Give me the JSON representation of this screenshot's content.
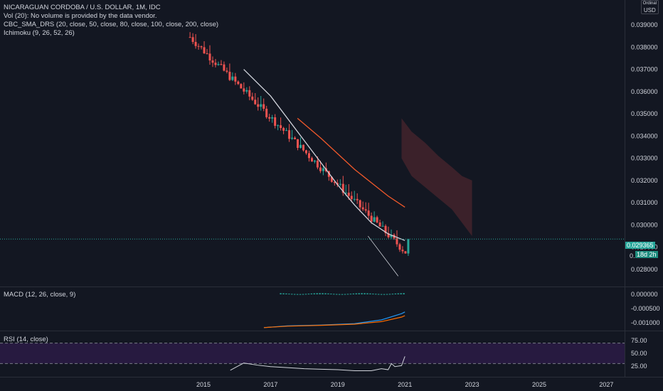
{
  "legend": {
    "symbol": "NICARAGUAN CORDOBA / U.S. DOLLAR, 1M, IDC",
    "volume": "Vol (20): No volume is provided by the data vendor.",
    "sma": "CBC_SMA_DRS (20, close, 50, close, 80, close, 100, close, 200, close)",
    "ichimoku": "Ichimoku (9, 26, 52, 26)"
  },
  "currency": {
    "top": "Ordinal",
    "bottom": "USD"
  },
  "last_price": {
    "value": "0.029365",
    "countdown": "18d 2h",
    "partial_label": "0."
  },
  "colors": {
    "background": "#131722",
    "up": "#26a69a",
    "down": "#ef5350",
    "sma_fast": "#d1d4dc",
    "sma_slow": "#f0592b",
    "cloud": "#5d2a31",
    "macd_line": "#2196f3",
    "signal_line": "#ff6d00",
    "rsi_band": "#2b1b45",
    "rsi_line": "#d1d4dc"
  },
  "panes": {
    "macd_label": "MACD (12, 26, close, 9)",
    "rsi_label": "RSI (14, close)"
  },
  "chart_data": [
    {
      "type": "candlestick",
      "title": "NICARAGUAN CORDOBA / U.S. DOLLAR, 1M, IDC",
      "x_ticks": [
        "2015",
        "2017",
        "2019",
        "2021",
        "2023",
        "2025",
        "2027"
      ],
      "y_ticks": [
        "0.039000",
        "0.038000",
        "0.037000",
        "0.036000",
        "0.035000",
        "0.034000",
        "0.033000",
        "0.032000",
        "0.031000",
        "0.030000",
        "0.029000",
        "0.028000"
      ],
      "ylim": [
        0.0274,
        0.0402
      ],
      "xlim": [
        2013.0,
        2027.4
      ],
      "candles": {
        "start_year": 2014.6,
        "end_year": 2021.1,
        "start_price": 0.03845,
        "end_price": 0.02865,
        "count": 78
      },
      "series": [
        {
          "name": "SMA fast",
          "x": [
            2016.2,
            2017.0,
            2018.0,
            2019.0,
            2019.5,
            2020.0,
            2020.5,
            2021.0
          ],
          "y": [
            0.037,
            0.0358,
            0.0338,
            0.0318,
            0.0309,
            0.0301,
            0.0296,
            0.0293
          ]
        },
        {
          "name": "SMA slow",
          "x": [
            2017.8,
            2018.5,
            2019.0,
            2019.5,
            2020.0,
            2020.5,
            2021.0
          ],
          "y": [
            0.0348,
            0.0339,
            0.0332,
            0.0325,
            0.0319,
            0.0313,
            0.0308
          ]
        },
        {
          "name": "trend",
          "x": [
            2019.9,
            2020.8
          ],
          "y": [
            0.0295,
            0.0277
          ]
        }
      ],
      "cloud": {
        "x": [
          2020.9,
          2021.2,
          2021.6,
          2022.0,
          2022.4,
          2022.7,
          2023.0
        ],
        "upper": [
          0.0348,
          0.0342,
          0.0337,
          0.0331,
          0.0326,
          0.0322,
          0.032
        ],
        "lower": [
          0.033,
          0.0322,
          0.0317,
          0.0312,
          0.0307,
          0.0301,
          0.0295
        ]
      },
      "price_line": 0.029365
    },
    {
      "type": "line",
      "title": "MACD (12, 26, close, 9)",
      "y_ticks": [
        "0.000000",
        "-0.000500",
        "-0.001000"
      ],
      "ylim": [
        -0.00125,
        0.00025
      ],
      "series": [
        {
          "name": "MACD",
          "x": [
            2016.8,
            2017.5,
            2018.5,
            2019.5,
            2020.3,
            2020.9,
            2021.0
          ],
          "y": [
            -0.00117,
            -0.00111,
            -0.00108,
            -0.00103,
            -0.0009,
            -0.00068,
            -0.00062
          ]
        },
        {
          "name": "Signal",
          "x": [
            2016.8,
            2017.5,
            2018.5,
            2019.5,
            2020.3,
            2020.9,
            2021.0
          ],
          "y": [
            -0.00117,
            -0.00112,
            -0.00109,
            -0.00105,
            -0.00096,
            -0.0008,
            -0.00075
          ]
        }
      ],
      "histogram": {
        "start_year": 2017.3,
        "end_year": 2021.0,
        "value": 4e-05
      }
    },
    {
      "type": "line",
      "title": "RSI (14, close)",
      "y_ticks": [
        "75.00",
        "50.00",
        "25.00"
      ],
      "ylim": [
        10,
        85
      ],
      "bands": [
        30,
        70
      ],
      "series": [
        {
          "name": "RSI",
          "x": [
            2015.8,
            2016.0,
            2016.2,
            2016.6,
            2017.0,
            2017.5,
            2018.0,
            2018.5,
            2019.0,
            2019.5,
            2020.0,
            2020.3,
            2020.5,
            2020.6,
            2020.7,
            2020.9,
            2021.0
          ],
          "y": [
            17,
            24,
            31,
            27,
            24,
            22,
            20,
            19,
            18,
            16,
            16,
            20,
            18,
            30,
            24,
            26,
            44
          ]
        }
      ]
    }
  ]
}
